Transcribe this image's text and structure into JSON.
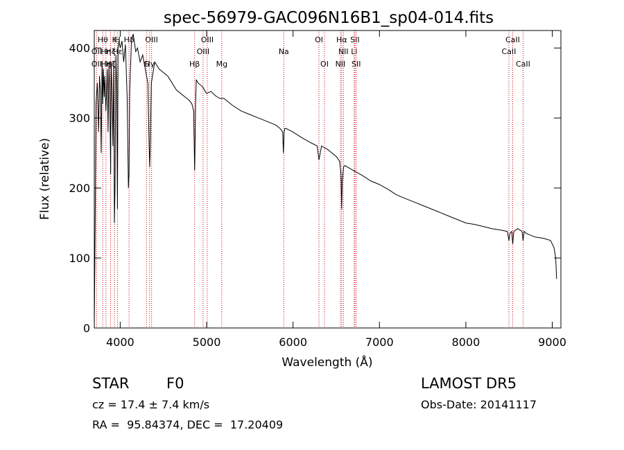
{
  "chart_data": {
    "type": "line",
    "title": "spec-56979-GAC096N16B1_sp04-014.fits",
    "xlabel": "Wavelength (Å)",
    "ylabel": "Flux (relative)",
    "xlim": [
      3700,
      9100
    ],
    "ylim": [
      0,
      425
    ],
    "xticks": [
      4000,
      5000,
      6000,
      7000,
      8000,
      9000
    ],
    "yticks": [
      0,
      100,
      200,
      300,
      400
    ],
    "grid": false,
    "colors": {
      "spectrum": "#000000",
      "lines": "#cc0000"
    },
    "spectrum": {
      "x": [
        3700,
        3710,
        3720,
        3735,
        3750,
        3760,
        3770,
        3780,
        3790,
        3797,
        3805,
        3815,
        3820,
        3835,
        3850,
        3860,
        3870,
        3880,
        3889,
        3895,
        3905,
        3915,
        3925,
        3933,
        3940,
        3950,
        3960,
        3968,
        3975,
        3985,
        4000,
        4020,
        4040,
        4060,
        4080,
        4095,
        4102,
        4110,
        4130,
        4150,
        4180,
        4200,
        4230,
        4260,
        4290,
        4320,
        4335,
        4341,
        4348,
        4360,
        4400,
        4450,
        4500,
        4550,
        4600,
        4650,
        4700,
        4750,
        4800,
        4830,
        4850,
        4858,
        4861,
        4865,
        4872,
        4880,
        4900,
        4950,
        5000,
        5050,
        5100,
        5150,
        5200,
        5300,
        5400,
        5500,
        5600,
        5700,
        5800,
        5850,
        5880,
        5889,
        5893,
        5897,
        5905,
        5920,
        6000,
        6100,
        6200,
        6280,
        6300,
        6330,
        6400,
        6450,
        6500,
        6540,
        6555,
        6563,
        6570,
        6585,
        6600,
        6700,
        6800,
        6900,
        7000,
        7100,
        7200,
        7300,
        7400,
        7500,
        7600,
        7700,
        7800,
        7900,
        8000,
        8100,
        8200,
        8300,
        8400,
        8480,
        8498,
        8510,
        8530,
        8542,
        8555,
        8600,
        8650,
        8662,
        8675,
        8700,
        8800,
        8900,
        8980,
        9000,
        9020,
        9040,
        9050
      ],
      "y": [
        0,
        140,
        320,
        350,
        280,
        360,
        340,
        250,
        380,
        320,
        370,
        330,
        360,
        310,
        370,
        280,
        380,
        330,
        220,
        380,
        340,
        260,
        380,
        150,
        200,
        390,
        340,
        170,
        400,
        410,
        400,
        410,
        380,
        405,
        330,
        200,
        220,
        340,
        410,
        420,
        395,
        400,
        380,
        390,
        370,
        350,
        260,
        230,
        260,
        350,
        380,
        370,
        365,
        360,
        350,
        340,
        335,
        330,
        325,
        320,
        310,
        250,
        225,
        250,
        320,
        355,
        350,
        345,
        335,
        338,
        332,
        328,
        328,
        318,
        310,
        305,
        300,
        295,
        290,
        285,
        280,
        250,
        265,
        280,
        285,
        285,
        280,
        272,
        265,
        260,
        240,
        260,
        255,
        250,
        245,
        238,
        220,
        170,
        210,
        230,
        232,
        225,
        218,
        210,
        205,
        198,
        190,
        185,
        180,
        175,
        170,
        165,
        160,
        155,
        150,
        148,
        145,
        142,
        140,
        138,
        125,
        135,
        138,
        120,
        138,
        142,
        138,
        125,
        138,
        135,
        130,
        128,
        125,
        120,
        115,
        100,
        70
      ]
    },
    "line_markers": [
      {
        "label": "Hθ",
        "wavelength": 3798,
        "row": 0
      },
      {
        "label": "K",
        "wavelength": 3934,
        "row": 0
      },
      {
        "label": "H",
        "wavelength": 3969,
        "row": 0
      },
      {
        "label": "Hδ",
        "wavelength": 4102,
        "row": 0
      },
      {
        "label": "OIII",
        "wavelength": 4363,
        "row": 0
      },
      {
        "label": "OIII",
        "wavelength": 5007,
        "row": 0
      },
      {
        "label": "OI",
        "wavelength": 6300,
        "row": 0
      },
      {
        "label": "Hα",
        "wavelength": 6563,
        "row": 0
      },
      {
        "label": "SII",
        "wavelength": 6716,
        "row": 0
      },
      {
        "label": "CaII",
        "wavelength": 8542,
        "row": 0
      },
      {
        "label": "OII",
        "wavelength": 3727,
        "row": 1
      },
      {
        "label": "Hη",
        "wavelength": 3835,
        "row": 1
      },
      {
        "label": "Hζ",
        "wavelength": 3889,
        "row": 1
      },
      {
        "label": "Hε",
        "wavelength": 3970,
        "row": 1
      },
      {
        "label": "OIII",
        "wavelength": 4959,
        "row": 1
      },
      {
        "label": "Na",
        "wavelength": 5893,
        "row": 1
      },
      {
        "label": "NII",
        "wavelength": 6583,
        "row": 1
      },
      {
        "label": "Li",
        "wavelength": 6708,
        "row": 1
      },
      {
        "label": "CaII",
        "wavelength": 8498,
        "row": 1
      },
      {
        "label": "OII",
        "wavelength": 3727,
        "row": 2
      },
      {
        "label": "Hη",
        "wavelength": 3835,
        "row": 2
      },
      {
        "label": "Hζ",
        "wavelength": 3889,
        "row": 2
      },
      {
        "label": "G",
        "wavelength": 4304,
        "row": 2
      },
      {
        "label": "Hγ",
        "wavelength": 4340,
        "row": 2
      },
      {
        "label": "Hβ",
        "wavelength": 4861,
        "row": 2
      },
      {
        "label": "Mg",
        "wavelength": 5175,
        "row": 2
      },
      {
        "label": "OI",
        "wavelength": 6364,
        "row": 2
      },
      {
        "label": "NII",
        "wavelength": 6548,
        "row": 2
      },
      {
        "label": "SII",
        "wavelength": 6731,
        "row": 2
      },
      {
        "label": "CaII",
        "wavelength": 8662,
        "row": 2
      }
    ]
  },
  "info": {
    "class_label": "STAR",
    "subclass": "F0",
    "survey": "LAMOST DR5",
    "cz": "cz = 17.4 ± 7.4 km/s",
    "obs_date": "Obs-Date: 20141117",
    "coords": "RA =  95.84374, DEC =  17.20409"
  }
}
